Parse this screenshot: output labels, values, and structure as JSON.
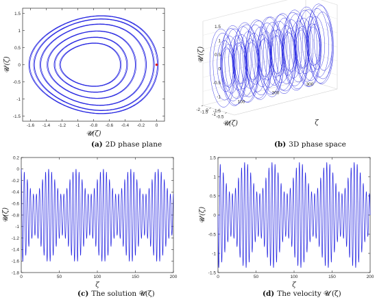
{
  "colors": {
    "curve": "#1f1fe0",
    "marker": "#e01a1a",
    "axis": "#262626",
    "grid": "#cccccc"
  },
  "chart_data": [
    {
      "id": "a",
      "type": "line",
      "panel": "(a)",
      "caption": "2D phase plane",
      "xlabel": "𝓤(ζ)",
      "ylabel": "𝓤′(ζ)",
      "xlim": [
        -1.7,
        0.1
      ],
      "ylim": [
        -1.65,
        1.65
      ],
      "xticks": [
        -1.6,
        -1.4,
        -1.2,
        -1,
        -0.8,
        -0.6,
        -0.4,
        -0.2,
        0
      ],
      "xtick_labels": [
        "-1.6",
        "-1.4",
        "-1.2",
        "-1",
        "-0.8",
        "-0.6",
        "-0.4",
        "-0.2",
        "0"
      ],
      "yticks": [
        -1.5,
        -1,
        -0.5,
        0,
        0.5,
        1,
        1.5
      ],
      "ytick_labels": [
        "-1.5",
        "-1",
        "-0.5",
        "0",
        "0.5",
        "1",
        "1.5"
      ],
      "series": [
        {
          "kind": "closed orbits",
          "loops": [
            {
              "xmin": -1.62,
              "xmax": 0.02,
              "ymax": 1.42
            },
            {
              "xmin": -1.55,
              "xmax": -0.04,
              "ymax": 1.32
            },
            {
              "xmin": -1.48,
              "xmax": -0.13,
              "ymax": 1.18
            },
            {
              "xmin": -1.38,
              "xmax": -0.27,
              "ymax": 0.97
            },
            {
              "xmin": -1.3,
              "xmax": -0.37,
              "ymax": 0.8
            },
            {
              "xmin": -1.22,
              "xmax": -0.46,
              "ymax": 0.62
            }
          ]
        }
      ],
      "marker": {
        "x": 0.0,
        "y": 0.0
      }
    },
    {
      "id": "b",
      "type": "line",
      "panel": "(b)",
      "caption": "3D phase space",
      "xlabel": "ζ",
      "ylabel": "𝓤(ζ)",
      "zlabel": "𝓤′(ζ)",
      "zeta_ticks": [
        0,
        100,
        200,
        300
      ],
      "u_ticks": [
        -2,
        -1.5,
        -1,
        -0.5
      ],
      "u_tick_labels": [
        "-2",
        "-1.5",
        "-1",
        "-0.5"
      ],
      "up_ticks": [
        -1.5,
        -1,
        -0.5,
        0,
        0.5,
        1,
        1.5
      ],
      "up_tick_labels": [
        "-1.5",
        "-1",
        "-0.5",
        "0",
        "0.5",
        "1",
        "1.5"
      ],
      "zeta_range": [
        0,
        300
      ],
      "u_range": [
        -2,
        0
      ],
      "up_range": [
        -1.5,
        1.5
      ]
    },
    {
      "id": "c",
      "type": "line",
      "panel": "(c)",
      "caption": "The solution 𝓤(ζ)",
      "xlabel": "ζ",
      "ylabel": "𝓤(ζ)",
      "xlim": [
        0,
        200
      ],
      "ylim": [
        -1.8,
        0.2
      ],
      "xticks": [
        0,
        50,
        100,
        150,
        200
      ],
      "xtick_labels": [
        "0",
        "50",
        "100",
        "150",
        "200"
      ],
      "yticks": [
        -1.8,
        -1.6,
        -1.4,
        -1.2,
        -1,
        -0.8,
        -0.6,
        -0.4,
        -0.2,
        0,
        0.2
      ],
      "ytick_labels": [
        "-1.8",
        "-1.6",
        "-1.4",
        "-1.2",
        "-1",
        "-0.8",
        "-0.6",
        "-0.4",
        "-0.2",
        "0",
        "0.2"
      ],
      "signal": {
        "period": 4.0,
        "beat_period": 36.0,
        "max_range": [
          -0.45,
          0.0
        ],
        "min_range": [
          -1.15,
          -1.62
        ]
      }
    },
    {
      "id": "d",
      "type": "line",
      "panel": "(d)",
      "caption": "The velocity 𝓤′(ζ)",
      "xlabel": "ζ",
      "ylabel": "𝓤′(ζ)",
      "xlim": [
        0,
        200
      ],
      "ylim": [
        -1.5,
        1.5
      ],
      "xticks": [
        0,
        50,
        100,
        150,
        200
      ],
      "xtick_labels": [
        "0",
        "50",
        "100",
        "150",
        "200"
      ],
      "yticks": [
        -1.5,
        -1,
        -0.5,
        0,
        0.5,
        1,
        1.5
      ],
      "ytick_labels": [
        "-1.5",
        "-1",
        "-0.5",
        "0",
        "0.5",
        "1",
        "1.5"
      ],
      "signal": {
        "period": 4.0,
        "beat_period": 36.0,
        "amp_range": [
          0.55,
          1.38
        ]
      }
    }
  ]
}
